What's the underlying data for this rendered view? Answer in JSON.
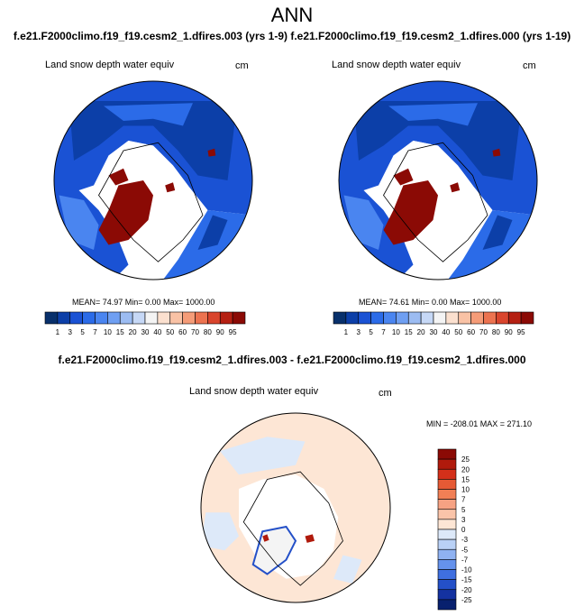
{
  "header": {
    "title": "ANN",
    "case_title": "f.e21.F2000climo.f19_f19.cesm2_1.dfires.003 (yrs 1-9) f.e21.F2000climo.f19_f19.cesm2_1.dfires.000 (yrs 1-19)",
    "diff_title": "f.e21.F2000climo.f19_f19.cesm2_1.dfires.003 - f.e21.F2000climo.f19_f19.cesm2_1.dfires.000"
  },
  "panels": [
    {
      "variable": "Land snow depth water equiv",
      "units": "cm",
      "stats": "MEAN=  74.97  Min=   0.00  Max= 1000.00"
    },
    {
      "variable": "Land snow depth water equiv",
      "units": "cm",
      "stats": "MEAN=  74.61  Min=   0.00  Max= 1000.00"
    },
    {
      "variable": "Land snow depth water equiv",
      "units": "cm",
      "stats": "MIN = -208.01 MAX = 271.10"
    }
  ],
  "chart_data": [
    {
      "type": "heatmap",
      "projection": "north-polar-stereographic",
      "title": "Land snow depth water equiv",
      "units": "cm",
      "colorbar_orientation": "horizontal",
      "levels": [
        "1",
        "3",
        "5",
        "7",
        "10",
        "15",
        "20",
        "30",
        "40",
        "50",
        "60",
        "70",
        "80",
        "90",
        "95"
      ],
      "colors": [
        "#08306b",
        "#0c3fa8",
        "#1a52d4",
        "#2b6be8",
        "#4a85f0",
        "#6f9ff2",
        "#9cbcf2",
        "#c6d8f6",
        "#f4f4f4",
        "#fbe0cf",
        "#f9c2a5",
        "#f59c78",
        "#ec7350",
        "#d9452d",
        "#b52012",
        "#8b0a05"
      ],
      "mean": 74.97,
      "min": 0.0,
      "max": 1000.0
    },
    {
      "type": "heatmap",
      "projection": "north-polar-stereographic",
      "title": "Land snow depth water equiv",
      "units": "cm",
      "colorbar_orientation": "horizontal",
      "levels": [
        "1",
        "3",
        "5",
        "7",
        "10",
        "15",
        "20",
        "30",
        "40",
        "50",
        "60",
        "70",
        "80",
        "90",
        "95"
      ],
      "colors": [
        "#08306b",
        "#0c3fa8",
        "#1a52d4",
        "#2b6be8",
        "#4a85f0",
        "#6f9ff2",
        "#9cbcf2",
        "#c6d8f6",
        "#f4f4f4",
        "#fbe0cf",
        "#f9c2a5",
        "#f59c78",
        "#ec7350",
        "#d9452d",
        "#b52012",
        "#8b0a05"
      ],
      "mean": 74.61,
      "min": 0.0,
      "max": 1000.0
    },
    {
      "type": "heatmap",
      "projection": "north-polar-stereographic",
      "title": "Land snow depth water equiv",
      "units": "cm",
      "colorbar_orientation": "vertical",
      "levels": [
        "25",
        "20",
        "15",
        "10",
        "7",
        "5",
        "3",
        "0",
        "-3",
        "-5",
        "-7",
        "-10",
        "-15",
        "-20",
        "-25"
      ],
      "colors": [
        "#8b0a05",
        "#b01a0c",
        "#d4301a",
        "#e65a35",
        "#f17f55",
        "#f6a283",
        "#fac4a9",
        "#fde6d5",
        "#dde9f9",
        "#b9d1f6",
        "#8fb2f2",
        "#6592ec",
        "#3f6fe0",
        "#2450c8",
        "#1432a0",
        "#08206e"
      ],
      "min": -208.01,
      "max": 271.1
    }
  ]
}
